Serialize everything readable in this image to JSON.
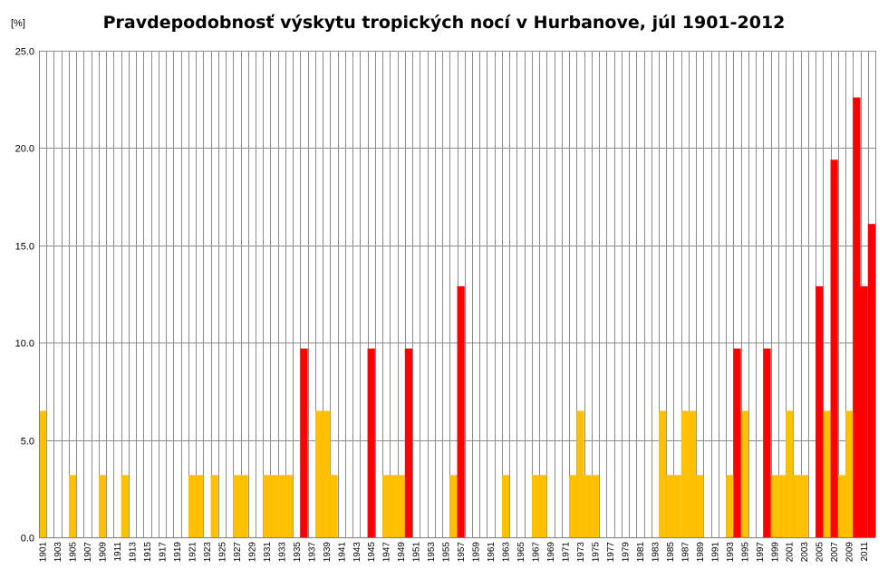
{
  "chart_data": {
    "type": "bar",
    "title": "Pravdepodobnosť výskytu tropických nocí v Hurbanove, júl 1901-2012",
    "ylabel": "[%]",
    "xlabel": "",
    "ylim": [
      0,
      25
    ],
    "yticks": [
      "0.0",
      "5.0",
      "10.0",
      "15.0",
      "20.0",
      "25.0"
    ],
    "grid": true,
    "x_start_year": 1901,
    "x_end_year": 2012,
    "x_label_every": 2,
    "colors": {
      "low": "#FFC000",
      "high": "#FF0000"
    },
    "series": [
      {
        "color": "low",
        "points": [
          {
            "year": 1901,
            "value": 6.5
          },
          {
            "year": 1905,
            "value": 3.2
          },
          {
            "year": 1909,
            "value": 3.2
          },
          {
            "year": 1912,
            "value": 3.2
          },
          {
            "year": 1921,
            "value": 3.2
          },
          {
            "year": 1922,
            "value": 3.2
          },
          {
            "year": 1924,
            "value": 3.2
          },
          {
            "year": 1927,
            "value": 3.2
          },
          {
            "year": 1928,
            "value": 3.2
          },
          {
            "year": 1931,
            "value": 3.2
          },
          {
            "year": 1932,
            "value": 3.2
          },
          {
            "year": 1933,
            "value": 3.2
          },
          {
            "year": 1934,
            "value": 3.2
          },
          {
            "year": 1938,
            "value": 6.5
          },
          {
            "year": 1939,
            "value": 6.5
          },
          {
            "year": 1940,
            "value": 3.2
          },
          {
            "year": 1947,
            "value": 3.2
          },
          {
            "year": 1948,
            "value": 3.2
          },
          {
            "year": 1949,
            "value": 3.2
          },
          {
            "year": 1956,
            "value": 3.2
          },
          {
            "year": 1963,
            "value": 3.2
          },
          {
            "year": 1967,
            "value": 3.2
          },
          {
            "year": 1968,
            "value": 3.2
          },
          {
            "year": 1972,
            "value": 3.2
          },
          {
            "year": 1973,
            "value": 6.5
          },
          {
            "year": 1974,
            "value": 3.2
          },
          {
            "year": 1975,
            "value": 3.2
          },
          {
            "year": 1984,
            "value": 6.5
          },
          {
            "year": 1985,
            "value": 3.2
          },
          {
            "year": 1986,
            "value": 3.2
          },
          {
            "year": 1987,
            "value": 6.5
          },
          {
            "year": 1988,
            "value": 6.5
          },
          {
            "year": 1989,
            "value": 3.2
          },
          {
            "year": 1993,
            "value": 3.2
          },
          {
            "year": 1995,
            "value": 6.5
          },
          {
            "year": 1999,
            "value": 3.2
          },
          {
            "year": 2000,
            "value": 3.2
          },
          {
            "year": 2001,
            "value": 6.5
          },
          {
            "year": 2002,
            "value": 3.2
          },
          {
            "year": 2003,
            "value": 3.2
          },
          {
            "year": 2006,
            "value": 6.5
          },
          {
            "year": 2008,
            "value": 3.2
          },
          {
            "year": 2009,
            "value": 6.5
          }
        ]
      },
      {
        "color": "high",
        "points": [
          {
            "year": 1936,
            "value": 9.7
          },
          {
            "year": 1945,
            "value": 9.7
          },
          {
            "year": 1950,
            "value": 9.7
          },
          {
            "year": 1957,
            "value": 12.9
          },
          {
            "year": 1994,
            "value": 9.7
          },
          {
            "year": 1998,
            "value": 9.7
          },
          {
            "year": 2005,
            "value": 12.9
          },
          {
            "year": 2007,
            "value": 19.4
          },
          {
            "year": 2010,
            "value": 22.6
          },
          {
            "year": 2011,
            "value": 12.9
          },
          {
            "year": 2012,
            "value": 16.1
          }
        ]
      }
    ]
  }
}
